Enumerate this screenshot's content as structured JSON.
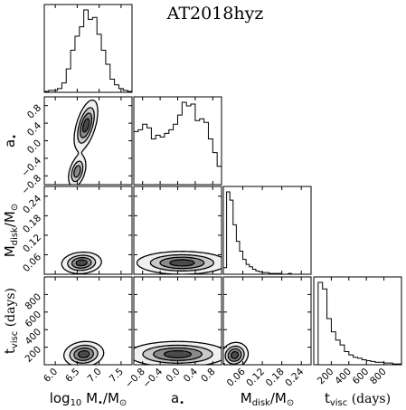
{
  "chart_data": {
    "type": "corner",
    "title": "AT2018hyz",
    "parameters": [
      {
        "key": "logM",
        "label_parts": [
          "log",
          "10",
          " M",
          "•",
          "/M",
          "⊙"
        ],
        "range": [
          5.75,
          7.75
        ],
        "ticks": [
          6.0,
          6.5,
          7.0,
          7.5
        ],
        "tick_labels": [
          "6.0",
          "6.5",
          "7.0",
          "7.5"
        ]
      },
      {
        "key": "a",
        "label_parts": [
          "a",
          "•"
        ],
        "range": [
          -1.0,
          1.0
        ],
        "ticks": [
          -0.8,
          -0.4,
          0.0,
          0.4,
          0.8
        ],
        "tick_labels": [
          "−0.8",
          "−0.4",
          "0.0",
          "0.4",
          "0.8"
        ]
      },
      {
        "key": "Mdisk",
        "label_parts": [
          "M",
          "disk",
          "/M",
          "⊙"
        ],
        "range": [
          0.0,
          0.27
        ],
        "ticks": [
          0.06,
          0.12,
          0.18,
          0.24
        ],
        "tick_labels": [
          "0.06",
          "0.12",
          "0.18",
          "0.24"
        ]
      },
      {
        "key": "tvisc",
        "label_parts": [
          "t",
          "visc",
          " (days)"
        ],
        "range": [
          0,
          1000
        ],
        "ticks": [
          200,
          400,
          600,
          800
        ],
        "tick_labels": [
          "200",
          "400",
          "600",
          "800"
        ]
      }
    ],
    "histograms": [
      {
        "param": "logM",
        "bin_edges": [
          5.75,
          5.85,
          5.95,
          6.05,
          6.15,
          6.25,
          6.35,
          6.45,
          6.55,
          6.65,
          6.75,
          6.85,
          6.95,
          7.05,
          7.15,
          7.25,
          7.35,
          7.45,
          7.55,
          7.65,
          7.75
        ],
        "values": [
          1,
          2,
          2,
          4,
          10,
          25,
          45,
          60,
          70,
          88,
          78,
          80,
          62,
          45,
          30,
          14,
          8,
          4,
          2,
          1
        ]
      },
      {
        "param": "a",
        "bin_edges": [
          -1.0,
          -0.9,
          -0.8,
          -0.7,
          -0.6,
          -0.5,
          -0.4,
          -0.3,
          -0.2,
          -0.1,
          0.0,
          0.1,
          0.2,
          0.3,
          0.4,
          0.5,
          0.6,
          0.7,
          0.8,
          0.9,
          1.0
        ],
        "values": [
          58,
          60,
          66,
          62,
          50,
          54,
          52,
          56,
          60,
          66,
          76,
          90,
          86,
          88,
          70,
          72,
          68,
          50,
          35,
          20
        ]
      },
      {
        "param": "Mdisk",
        "bin_edges": [
          0.0,
          0.01,
          0.02,
          0.03,
          0.04,
          0.05,
          0.06,
          0.07,
          0.08,
          0.09,
          0.1,
          0.11,
          0.12,
          0.13,
          0.14,
          0.15,
          0.16,
          0.17,
          0.18,
          0.19,
          0.2,
          0.21,
          0.22,
          0.23,
          0.24,
          0.25,
          0.26,
          0.27
        ],
        "values": [
          8,
          100,
          90,
          60,
          40,
          28,
          18,
          12,
          9,
          6,
          4,
          3,
          2,
          2,
          1,
          1,
          1,
          1,
          0,
          0,
          1,
          0,
          0,
          0,
          0,
          0,
          0
        ]
      },
      {
        "param": "tvisc",
        "bin_edges": [
          0,
          50,
          100,
          150,
          200,
          250,
          300,
          350,
          400,
          450,
          500,
          550,
          600,
          650,
          700,
          750,
          800,
          850,
          900,
          950,
          1000
        ],
        "values": [
          0,
          100,
          92,
          56,
          40,
          30,
          24,
          16,
          12,
          9,
          8,
          6,
          5,
          4,
          3,
          3,
          2,
          2,
          1,
          1
        ]
      }
    ],
    "joint": [
      {
        "x": "logM",
        "y": "a",
        "modes": [
          {
            "x": 6.7,
            "y": 0.35,
            "sx": 0.13,
            "sy": 0.28,
            "rho": 0.55,
            "w": 1.0
          },
          {
            "x": 6.5,
            "y": -0.7,
            "sx": 0.1,
            "sy": 0.18,
            "rho": 0.4,
            "w": 0.8
          }
        ]
      },
      {
        "x": "logM",
        "y": "Mdisk",
        "modes": [
          {
            "x": 6.6,
            "y": 0.035,
            "sx": 0.22,
            "sy": 0.016,
            "rho": 0.1,
            "w": 1.0
          }
        ]
      },
      {
        "x": "logM",
        "y": "tvisc",
        "modes": [
          {
            "x": 6.65,
            "y": 120,
            "sx": 0.22,
            "sy": 70,
            "rho": 0.1,
            "w": 1.0
          }
        ]
      },
      {
        "x": "a",
        "y": "Mdisk",
        "modes": [
          {
            "x": 0.1,
            "y": 0.035,
            "sx": 0.5,
            "sy": 0.017,
            "rho": 0.0,
            "w": 1.0
          }
        ]
      },
      {
        "x": "a",
        "y": "tvisc",
        "modes": [
          {
            "x": 0.0,
            "y": 120,
            "sx": 0.55,
            "sy": 70,
            "rho": 0.0,
            "w": 1.0
          }
        ]
      },
      {
        "x": "Mdisk",
        "y": "tvisc",
        "modes": [
          {
            "x": 0.035,
            "y": 110,
            "sx": 0.02,
            "sy": 70,
            "rho": 0.1,
            "w": 1.0
          }
        ]
      }
    ],
    "contour_levels": [
      0.12,
      0.35,
      0.6,
      0.85
    ],
    "grid": false,
    "legend": "none"
  },
  "colors": {
    "line": "#000000",
    "shade_light": "#f0f0f0",
    "shade_dark": "#4a4a4a",
    "background": "#ffffff"
  }
}
